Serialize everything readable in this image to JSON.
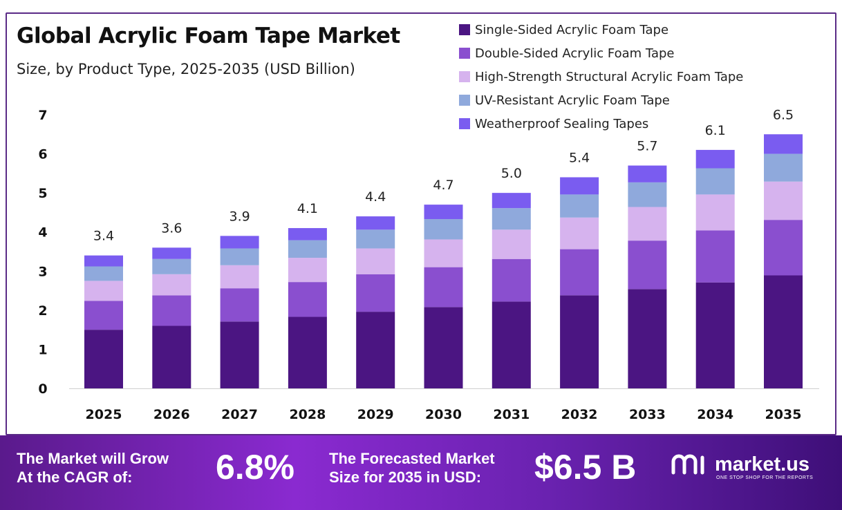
{
  "header": {
    "title": "Global Acrylic Foam Tape Market",
    "subtitle": "Size, by Product Type, 2025-2035 (USD Billion)"
  },
  "chart_data": {
    "type": "bar",
    "stacked": true,
    "categories": [
      "2025",
      "2026",
      "2027",
      "2028",
      "2029",
      "2030",
      "2031",
      "2032",
      "2033",
      "2034",
      "2035"
    ],
    "totals": [
      3.4,
      3.6,
      3.9,
      4.1,
      4.4,
      4.7,
      5.0,
      5.4,
      5.7,
      6.1,
      6.5
    ],
    "total_labels": [
      "3.4",
      "3.6",
      "3.9",
      "4.1",
      "4.4",
      "4.7",
      "5.0",
      "5.4",
      "5.7",
      "6.1",
      "6.5"
    ],
    "series": [
      {
        "name": "Single-Sided Acrylic Foam Tape",
        "color": "#4b1582",
        "values": [
          1.5,
          1.6,
          1.71,
          1.83,
          1.96,
          2.08,
          2.22,
          2.38,
          2.54,
          2.71,
          2.89
        ]
      },
      {
        "name": "Double-Sided Acrylic Foam Tape",
        "color": "#8a4fcf",
        "values": [
          0.74,
          0.78,
          0.85,
          0.89,
          0.96,
          1.02,
          1.09,
          1.18,
          1.24,
          1.33,
          1.42
        ]
      },
      {
        "name": "High-Strength Structural Acrylic Foam Tape",
        "color": "#d6b3ee",
        "values": [
          0.51,
          0.54,
          0.59,
          0.62,
          0.66,
          0.71,
          0.75,
          0.81,
          0.86,
          0.92,
          0.98
        ]
      },
      {
        "name": "UV-Resistant Acrylic Foam Tape",
        "color": "#8fa9dc",
        "values": [
          0.37,
          0.39,
          0.43,
          0.45,
          0.48,
          0.52,
          0.55,
          0.59,
          0.63,
          0.67,
          0.71
        ]
      },
      {
        "name": "Weatherproof Sealing Tapes",
        "color": "#7a5cf0",
        "values": [
          0.28,
          0.29,
          0.32,
          0.31,
          0.34,
          0.37,
          0.39,
          0.44,
          0.43,
          0.47,
          0.5
        ]
      }
    ],
    "yticks": [
      "0",
      "1",
      "2",
      "3",
      "4",
      "5",
      "6",
      "7"
    ],
    "ylim": [
      0,
      7
    ],
    "grid": false,
    "legend": "top-right"
  },
  "footer": {
    "cagr_label_line1": "The Market will Grow",
    "cagr_label_line2": "At the CAGR of:",
    "cagr_value": "6.8%",
    "forecast_label_line1": "The Forecasted Market",
    "forecast_label_line2": "Size for 2035 in USD:",
    "forecast_value": "$6.5 B",
    "brand": "market.us",
    "brand_tagline": "ONE STOP SHOP FOR THE REPORTS",
    "logo_icon": "market-us-logo-icon"
  }
}
